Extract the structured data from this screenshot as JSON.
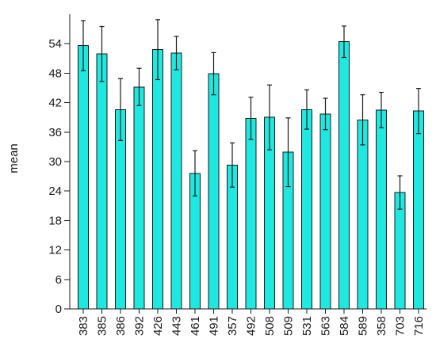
{
  "chart_data": {
    "type": "bar",
    "title": "",
    "xlabel": "",
    "ylabel": "mean",
    "ylim": [
      0,
      60
    ],
    "yticks": [
      0,
      6,
      12,
      18,
      24,
      30,
      36,
      42,
      48,
      54
    ],
    "grid": false,
    "bar_color": "#1ee8e0",
    "categories": [
      "383",
      "385",
      "386",
      "392",
      "426",
      "443",
      "461",
      "491",
      "357",
      "492",
      "508",
      "509",
      "531",
      "563",
      "584",
      "589",
      "358",
      "703",
      "716"
    ],
    "values": [
      53.6,
      51.9,
      40.6,
      45.2,
      52.8,
      52.1,
      27.6,
      47.9,
      29.3,
      38.8,
      39.0,
      31.9,
      40.6,
      39.7,
      54.4,
      38.5,
      40.5,
      23.7,
      40.3
    ],
    "error_high": [
      58.7,
      57.5,
      46.9,
      49.0,
      58.9,
      55.5,
      32.2,
      52.2,
      33.8,
      43.1,
      45.6,
      38.9,
      44.6,
      42.9,
      57.6,
      43.6,
      44.1,
      27.1,
      44.9
    ],
    "error_low": [
      48.5,
      46.3,
      34.3,
      41.4,
      46.7,
      48.7,
      23.0,
      43.6,
      24.8,
      34.5,
      32.4,
      24.9,
      36.6,
      36.5,
      51.2,
      33.4,
      36.9,
      20.3,
      35.7
    ]
  }
}
